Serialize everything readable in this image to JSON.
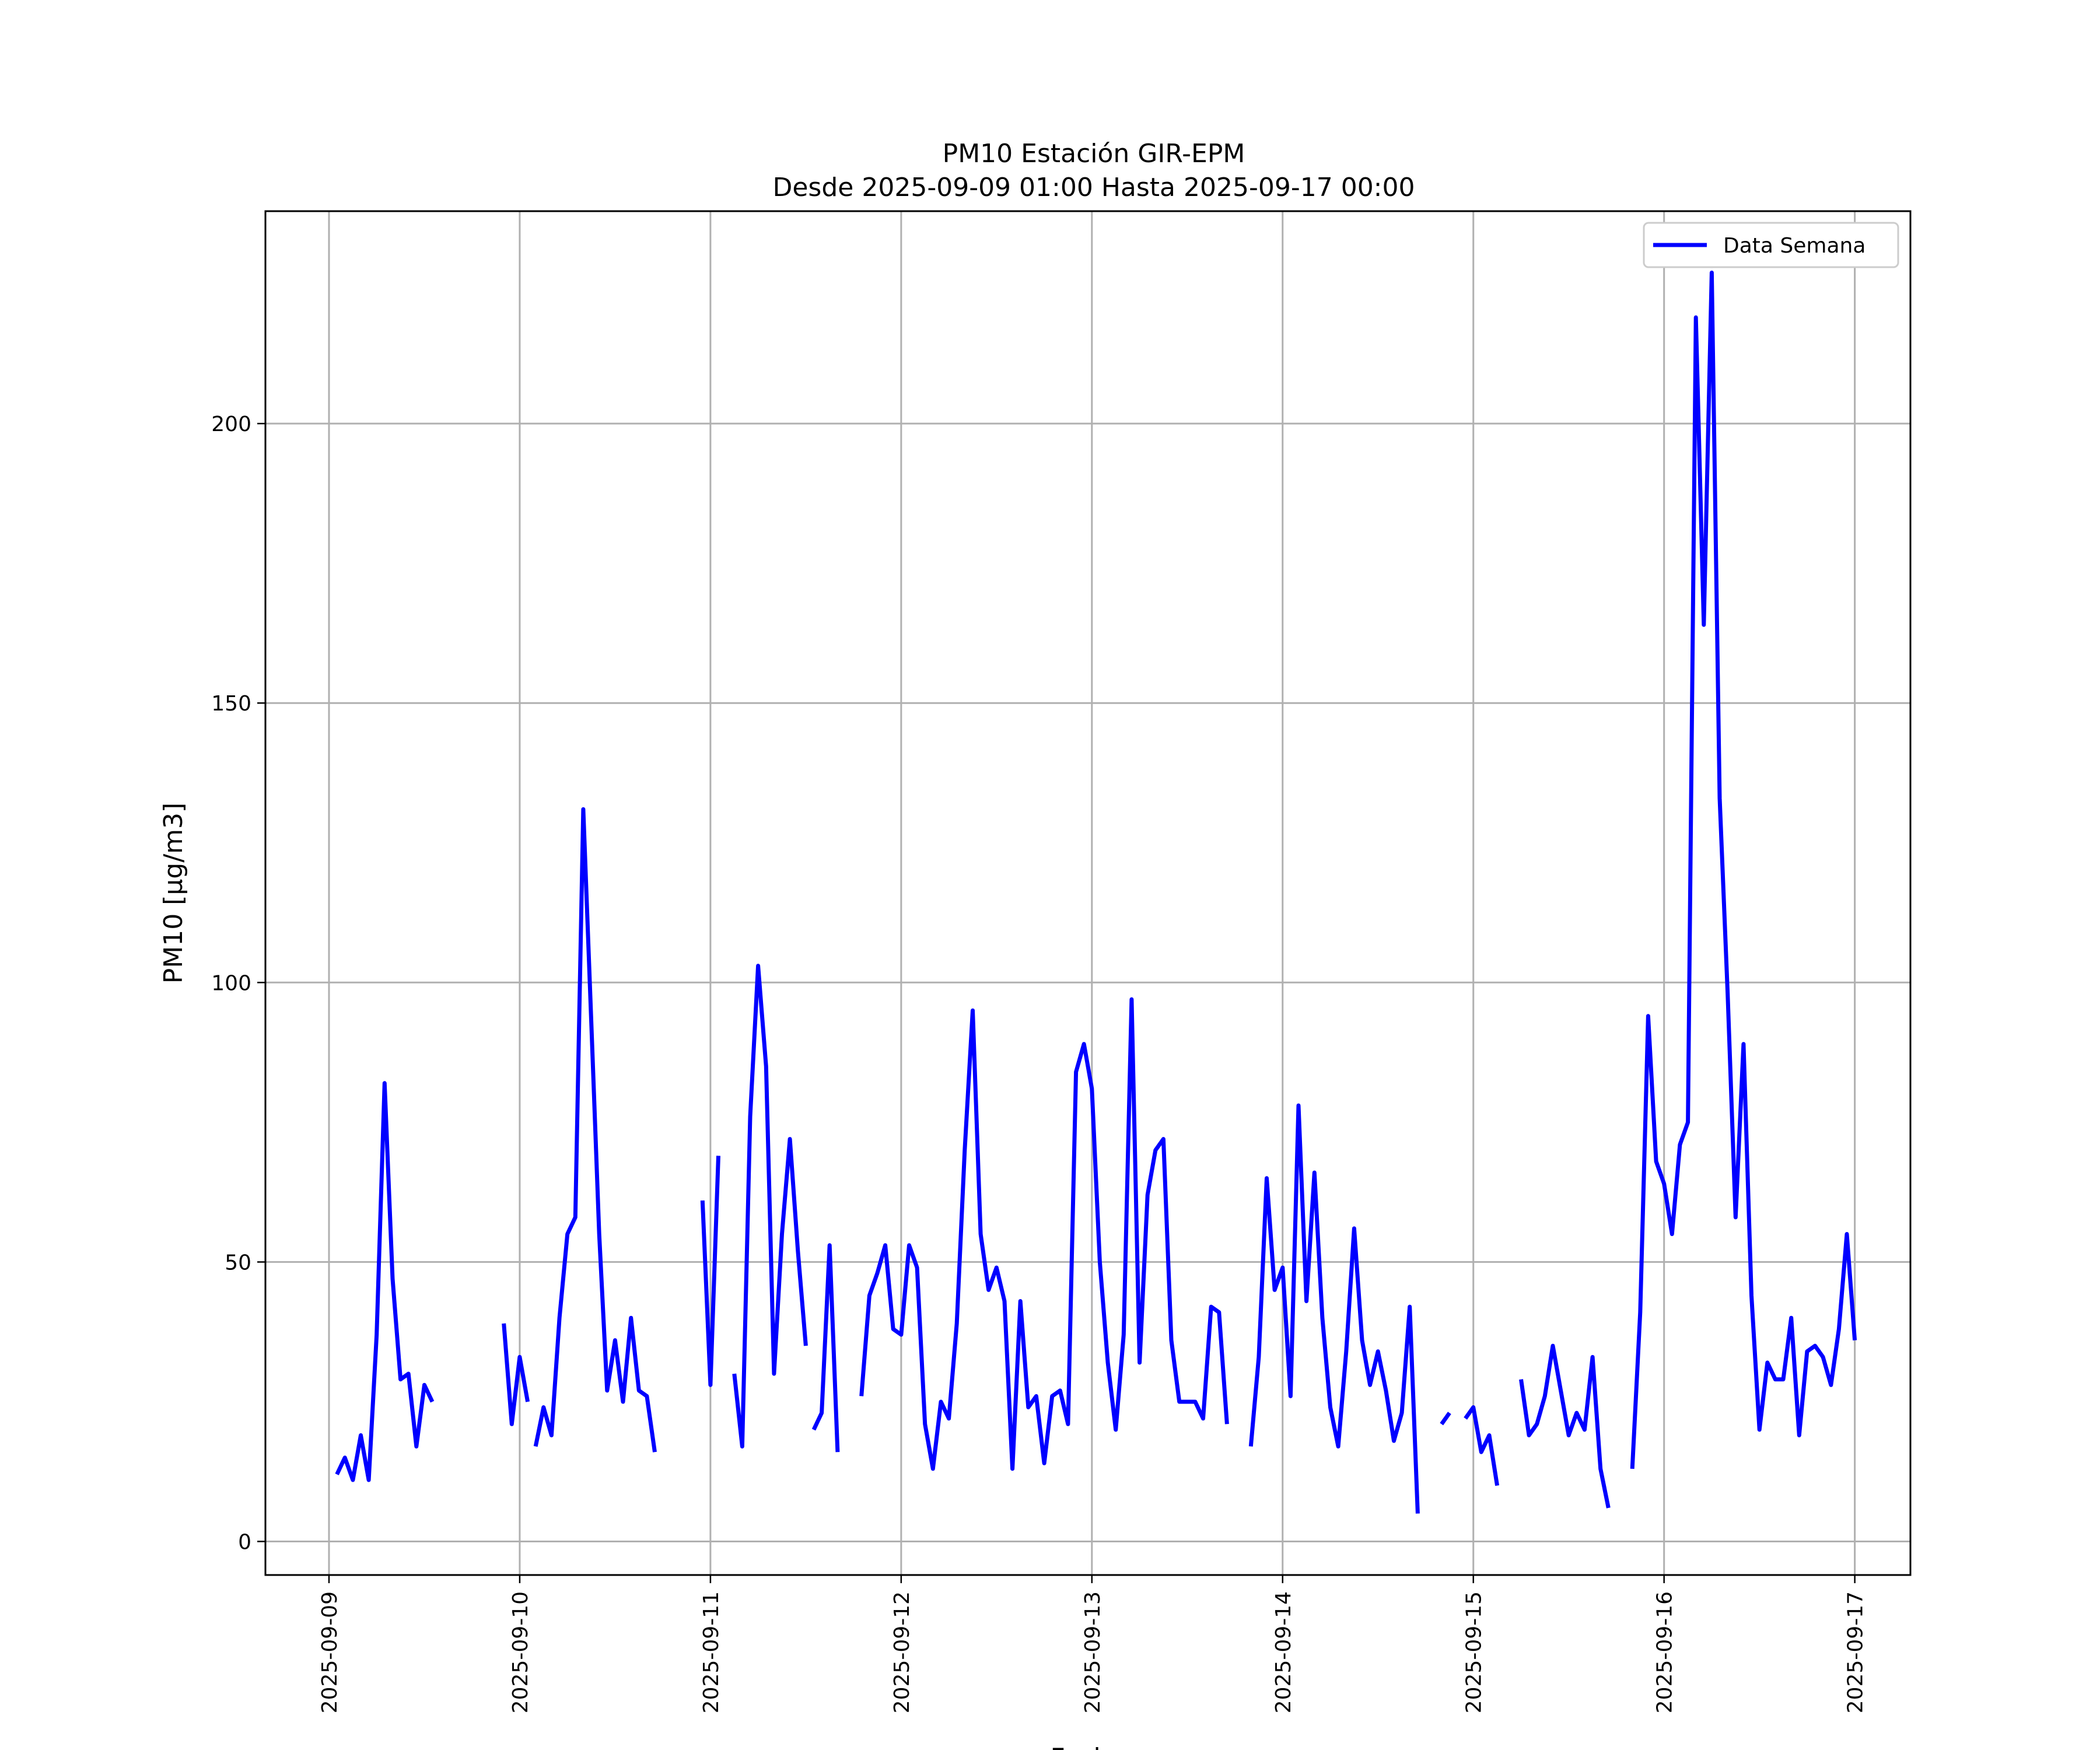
{
  "chart_data": {
    "type": "line",
    "title": "PM10 Estación GIR-EPM",
    "subtitle": "Desde 2025-09-09 01:00 Hasta 2025-09-17 00:00",
    "xlabel": "Fecha",
    "ylabel": "PM10 [μg/m3]",
    "x_ticks": [
      "2025-09-09",
      "2025-09-10",
      "2025-09-11",
      "2025-09-12",
      "2025-09-13",
      "2025-09-14",
      "2025-09-15",
      "2025-09-16",
      "2025-09-17"
    ],
    "y_ticks": [
      0,
      50,
      100,
      150,
      200
    ],
    "ylim": [
      -6,
      238
    ],
    "xlim": [
      "2025-09-08 16:00",
      "2025-09-17 07:00"
    ],
    "grid": true,
    "legend": "top-right",
    "color": "#0000ff",
    "series": [
      {
        "name": "Data Semana",
        "segments": [
          {
            "start": "2025-09-09 01:00",
            "values": [
              12,
              15,
              11,
              19,
              11,
              37,
              82,
              47,
              29,
              30,
              17,
              28,
              25
            ]
          },
          {
            "start": "2025-09-09 22:00",
            "values": [
              39,
              21,
              33,
              25
            ]
          },
          {
            "start": "2025-09-10 02:00",
            "values": [
              17,
              24,
              19,
              40,
              55,
              58,
              131,
              93,
              55,
              27,
              36,
              25,
              40,
              27,
              26,
              16
            ]
          },
          {
            "start": "2025-09-10 23:00",
            "values": [
              61,
              28,
              69
            ]
          },
          {
            "start": "2025-09-11 03:00",
            "values": [
              30,
              17,
              76,
              103,
              85,
              30,
              55,
              72,
              52,
              35
            ]
          },
          {
            "start": "2025-09-11 13:00",
            "values": [
              20,
              23,
              53,
              16
            ]
          },
          {
            "start": "2025-09-11 19:00",
            "values": [
              26,
              44,
              48,
              53,
              38,
              37,
              53,
              49,
              21,
              13,
              25,
              22,
              39,
              70,
              95,
              55,
              45,
              49,
              43,
              13,
              43,
              24,
              26,
              14,
              26,
              27,
              21,
              84,
              89,
              81,
              50,
              32,
              20,
              37,
              97,
              32,
              62,
              70,
              72,
              36,
              25,
              25,
              25,
              22,
              42,
              41,
              21
            ]
          },
          {
            "start": "2025-09-13 20:00",
            "values": [
              17,
              33,
              65,
              45,
              49,
              26,
              78,
              43,
              66,
              40,
              24,
              17,
              34,
              56,
              36,
              28,
              34,
              27,
              18,
              23,
              42,
              5
            ]
          },
          {
            "start": "2025-09-14 20:00",
            "values": [
              21,
              23
            ]
          },
          {
            "start": "2025-09-14 23:00",
            "values": [
              22,
              24,
              16,
              19,
              10
            ]
          },
          {
            "start": "2025-09-15 06:00",
            "values": [
              29,
              19,
              21,
              26,
              35,
              27,
              19,
              23,
              20,
              33,
              13,
              6
            ]
          },
          {
            "start": "2025-09-15 20:00",
            "values": [
              13,
              41,
              94,
              68,
              64,
              55,
              71,
              75,
              219,
              164,
              227,
              133,
              98,
              58,
              89,
              44,
              20,
              32,
              29,
              29,
              40,
              19,
              34,
              35,
              33,
              28,
              38,
              55,
              36
            ]
          }
        ]
      }
    ]
  }
}
